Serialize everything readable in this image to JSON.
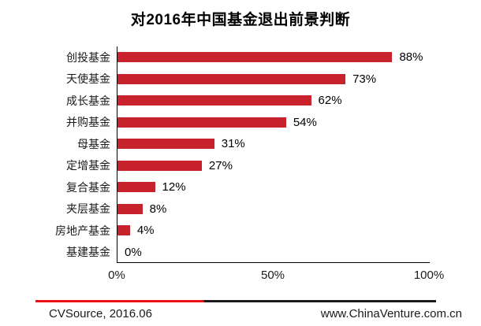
{
  "title": "对2016年中国基金退出前景判断",
  "chart_data": {
    "type": "bar",
    "orientation": "horizontal",
    "title": "对2016年中国基金退出前景判断",
    "categories": [
      "创投基金",
      "天使基金",
      "成长基金",
      "并购基金",
      "母基金",
      "定增基金",
      "复合基金",
      "夹层基金",
      "房地产基金",
      "基建基金"
    ],
    "values": [
      88,
      73,
      62,
      54,
      31,
      27,
      12,
      8,
      4,
      0
    ],
    "value_labels": [
      "88%",
      "73%",
      "62%",
      "54%",
      "31%",
      "27%",
      "12%",
      "8%",
      "4%",
      "0%"
    ],
    "x_ticks": [
      "0%",
      "50%",
      "100%"
    ],
    "xlim": [
      0,
      100
    ],
    "xlabel": "",
    "ylabel": "",
    "grid": "off",
    "legend": "none",
    "data_labels": "end-of-bar"
  },
  "colors": {
    "bar": "#c8232d",
    "axis": "#000000",
    "footer_rule_red": "#ee1111",
    "footer_rule_black": "#1a1a1a",
    "text": "#000000"
  },
  "footer": {
    "source": "CVSource, 2016.06",
    "website": "www.ChinaVenture.com.cn"
  }
}
